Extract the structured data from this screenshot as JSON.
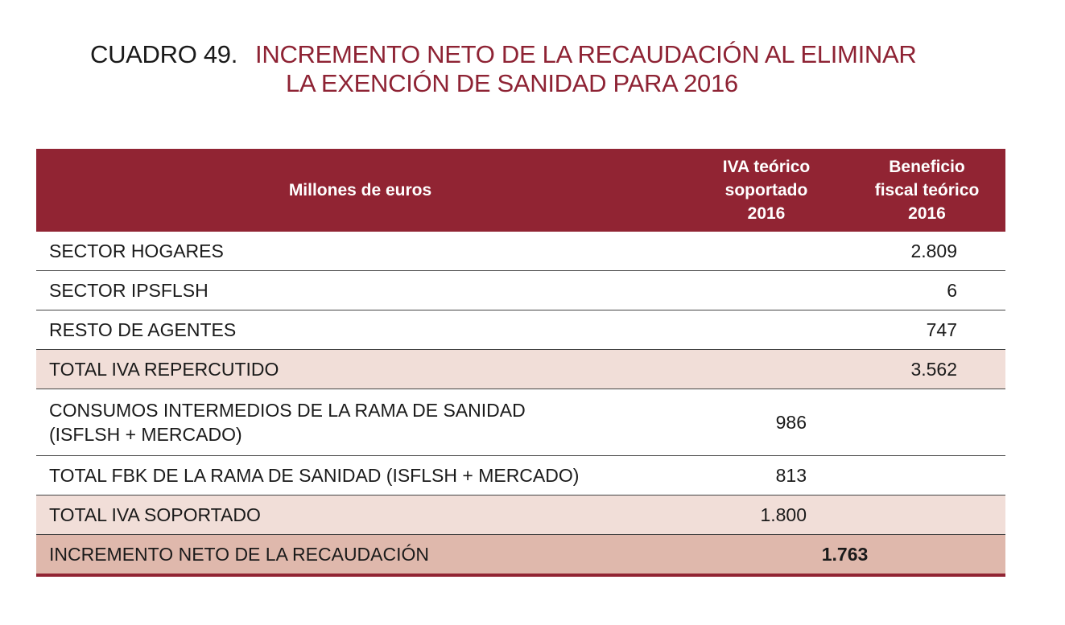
{
  "title": {
    "number": "CUADRO 49.",
    "line1": "INCREMENTO NETO DE LA RECAUDACIÓN AL ELIMINAR",
    "line2": "LA EXENCIÓN DE SANIDAD PARA 2016"
  },
  "colors": {
    "accent": "#912433",
    "total_row": "#f1ded8",
    "final_row": "#dfb8ac"
  },
  "table": {
    "headers": {
      "label": "Millones de euros",
      "iva_soportado": [
        "IVA teórico",
        "soportado",
        "2016"
      ],
      "beneficio": [
        "Beneficio",
        "fiscal teórico",
        "2016"
      ]
    },
    "rows": [
      {
        "label": "SECTOR HOGARES",
        "iva": "",
        "beneficio": "2.809"
      },
      {
        "label": "SECTOR IPSFLSH",
        "iva": "",
        "beneficio": "6"
      },
      {
        "label": "RESTO DE AGENTES",
        "iva": "",
        "beneficio": "747"
      },
      {
        "label": "TOTAL IVA REPERCUTIDO",
        "iva": "",
        "beneficio": "3.562"
      },
      {
        "label": "CONSUMOS INTERMEDIOS DE LA RAMA DE SANIDAD (ISFLSH + MERCADO)",
        "iva": "986",
        "beneficio": ""
      },
      {
        "label": "TOTAL FBK DE LA RAMA DE SANIDAD (ISFLSH + MERCADO)",
        "iva": "813",
        "beneficio": ""
      },
      {
        "label": "TOTAL IVA SOPORTADO",
        "iva": "1.800",
        "beneficio": ""
      }
    ],
    "final": {
      "label": "INCREMENTO NETO DE LA RECAUDACIÓN",
      "value": "1.763"
    }
  }
}
